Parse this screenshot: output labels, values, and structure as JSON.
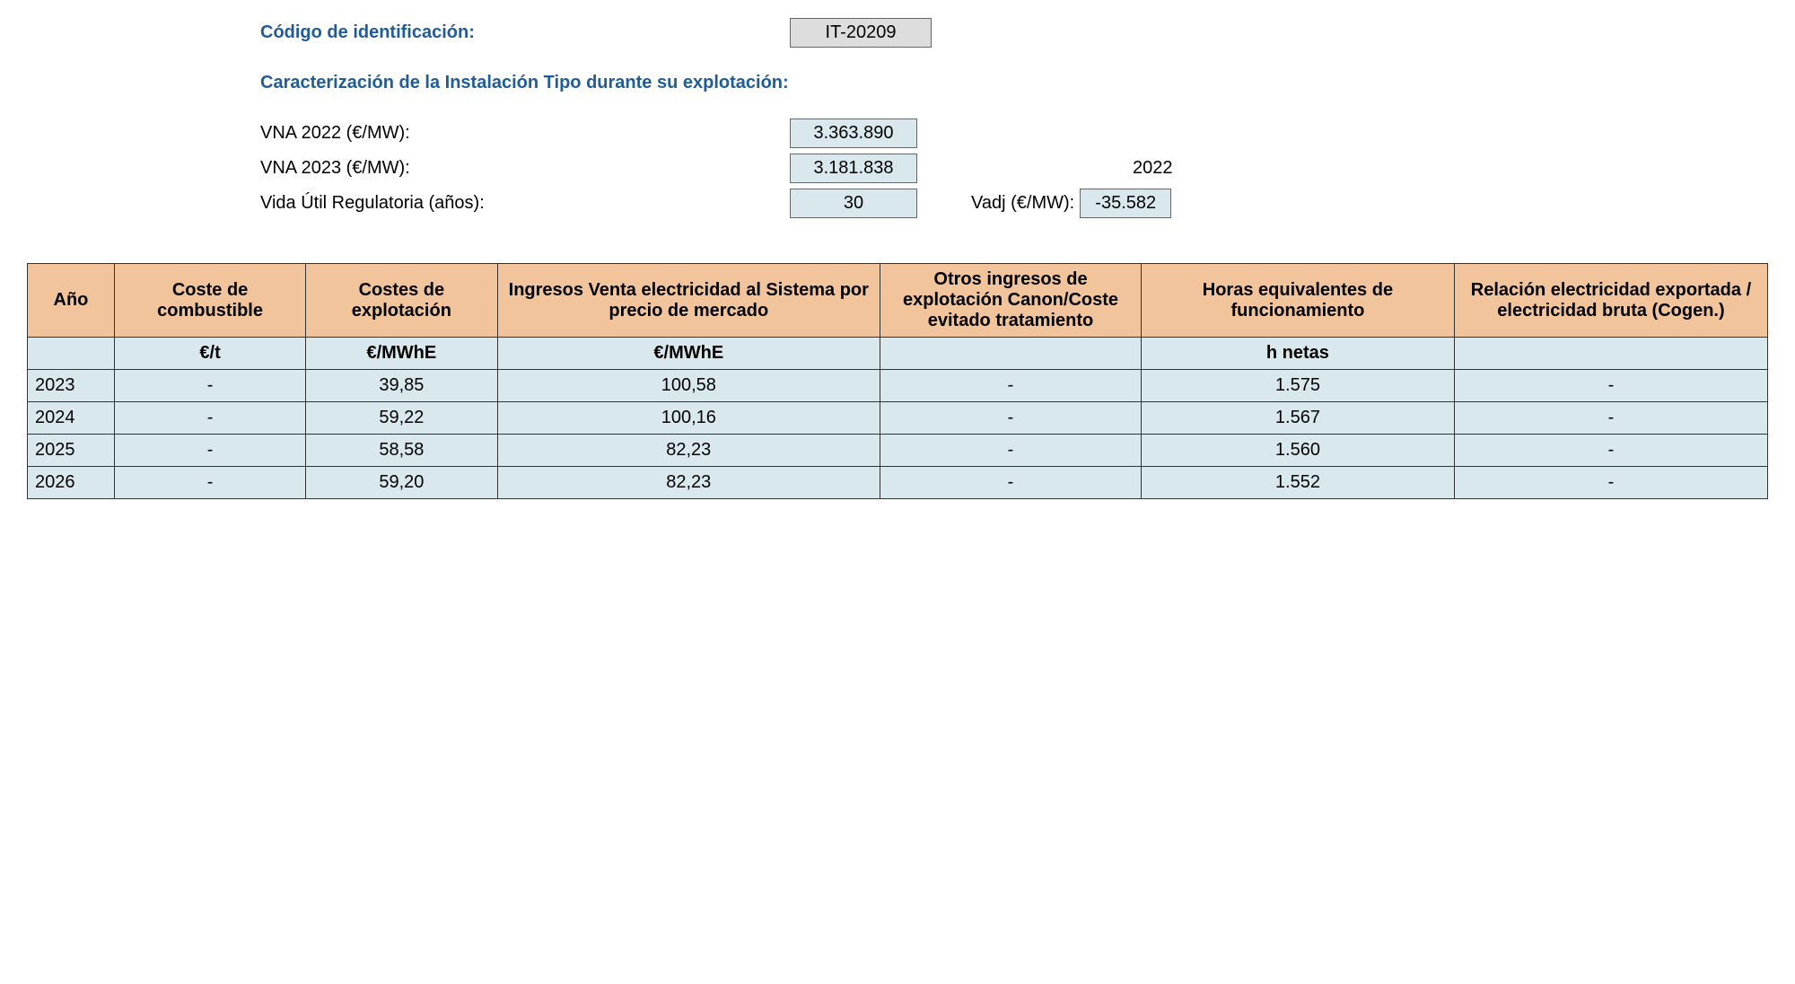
{
  "header": {
    "id_label": "Código de identificación:",
    "id_value": "IT-20209",
    "section_title": "Caracterización de la Instalación Tipo durante su explotación:",
    "params": [
      {
        "label": "VNA 2022 (€/MW):",
        "value": "3.363.890"
      },
      {
        "label": "VNA 2023 (€/MW):",
        "value": "3.181.838"
      },
      {
        "label": "Vida Útil Regulatoria (años):",
        "value": "30"
      }
    ],
    "year_ref": "2022",
    "vadj_label": "Vadj (€/MW):",
    "vadj_value": "-35.582"
  },
  "table": {
    "columns": [
      "Año",
      "Coste de combustible",
      "Costes de explotación",
      "Ingresos Venta electricidad al Sistema por precio de mercado",
      "Otros ingresos de explotación Canon/Coste evitado tratamiento",
      "Horas equivalentes de funcionamiento",
      "Relación electricidad exportada / electricidad bruta\n(Cogen.)"
    ],
    "units": [
      "",
      "€/t",
      "€/MWhE",
      "€/MWhE",
      "",
      "h netas",
      ""
    ],
    "rows": [
      [
        "2023",
        "-",
        "39,85",
        "100,58",
        "-",
        "1.575",
        "-"
      ],
      [
        "2024",
        "-",
        "59,22",
        "100,16",
        "-",
        "1.567",
        "-"
      ],
      [
        "2025",
        "-",
        "58,58",
        "82,23",
        "-",
        "1.560",
        "-"
      ],
      [
        "2026",
        "-",
        "59,20",
        "82,23",
        "-",
        "1.552",
        "-"
      ]
    ],
    "header_bg": "#f2c49b",
    "cell_bg": "#d8e8ed",
    "border_color": "#333333"
  },
  "colors": {
    "title_color": "#1f5c99",
    "id_box_bg": "#dddddd",
    "param_box_bg": "#d8e8ed"
  }
}
